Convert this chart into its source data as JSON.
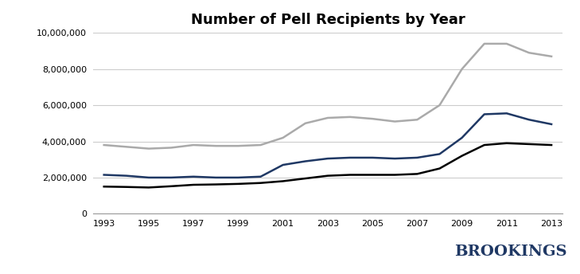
{
  "title": "Number of Pell Recipients by Year",
  "years": [
    1993,
    1994,
    1995,
    1996,
    1997,
    1998,
    1999,
    2000,
    2001,
    2002,
    2003,
    2004,
    2005,
    2006,
    2007,
    2008,
    2009,
    2010,
    2011,
    2012,
    2013
  ],
  "dependent": [
    1500000,
    1480000,
    1450000,
    1520000,
    1600000,
    1620000,
    1650000,
    1700000,
    1800000,
    1950000,
    2100000,
    2150000,
    2150000,
    2150000,
    2200000,
    2500000,
    3200000,
    3800000,
    3900000,
    3850000,
    3800000
  ],
  "independent": [
    2150000,
    2100000,
    2000000,
    2000000,
    2050000,
    2000000,
    2000000,
    2050000,
    2700000,
    2900000,
    3050000,
    3100000,
    3100000,
    3050000,
    3100000,
    3300000,
    4200000,
    5500000,
    5550000,
    5200000,
    4950000
  ],
  "total": [
    3800000,
    3700000,
    3600000,
    3650000,
    3800000,
    3750000,
    3750000,
    3800000,
    4200000,
    5000000,
    5300000,
    5350000,
    5250000,
    5100000,
    5200000,
    6000000,
    8000000,
    9400000,
    9400000,
    8900000,
    8700000
  ],
  "dependent_color": "#000000",
  "independent_color": "#1F3864",
  "total_color": "#AAAAAA",
  "ylim": [
    0,
    10000000
  ],
  "yticks": [
    0,
    2000000,
    4000000,
    6000000,
    8000000,
    10000000
  ],
  "xticks": [
    1993,
    1995,
    1997,
    1999,
    2001,
    2003,
    2005,
    2007,
    2009,
    2011,
    2013
  ],
  "background_color": "#FFFFFF",
  "grid_color": "#CCCCCC",
  "brookings_color": "#1F3864",
  "line_width": 1.8,
  "title_fontsize": 13,
  "legend_fontsize": 9,
  "tick_fontsize": 8
}
